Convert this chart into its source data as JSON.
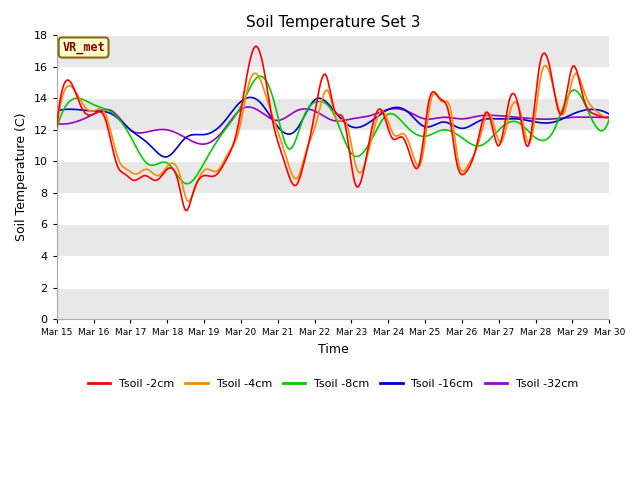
{
  "title": "Soil Temperature Set 3",
  "xlabel": "Time",
  "ylabel": "Soil Temperature (C)",
  "ylim": [
    0,
    18
  ],
  "yticks": [
    0,
    2,
    4,
    6,
    8,
    10,
    12,
    14,
    16,
    18
  ],
  "fig_bg_color": "#ffffff",
  "plot_bg_color": "#ffffff",
  "band_color_light": "#e8e8e8",
  "band_color_white": "#ffffff",
  "annotation_text": "VR_met",
  "annotation_color": "#8B0000",
  "annotation_bg": "#ffffcc",
  "annotation_edge": "#8B6914",
  "series": {
    "Tsoil -2cm": {
      "color": "#ff0000",
      "lw": 1.2
    },
    "Tsoil -4cm": {
      "color": "#ff8800",
      "lw": 1.2
    },
    "Tsoil -8cm": {
      "color": "#00cc00",
      "lw": 1.2
    },
    "Tsoil -16cm": {
      "color": "#0000cc",
      "lw": 1.2
    },
    "Tsoil -32cm": {
      "color": "#9900cc",
      "lw": 1.2
    }
  },
  "xtick_labels": [
    "Mar 15",
    "Mar 16",
    "Mar 17",
    "Mar 18",
    "Mar 19",
    "Mar 20",
    "Mar 21",
    "Mar 22",
    "Mar 23",
    "Mar 24",
    "Mar 25",
    "Mar 26",
    "Mar 27",
    "Mar 28",
    "Mar 29",
    "Mar 30"
  ],
  "tsoil_2cm_x": [
    0.0,
    0.35,
    0.7,
    1.0,
    1.3,
    1.65,
    1.85,
    2.1,
    2.4,
    2.7,
    3.0,
    3.3,
    3.5,
    3.7,
    4.0,
    4.3,
    4.6,
    4.9,
    5.1,
    5.4,
    5.65,
    5.85,
    6.15,
    6.5,
    6.7,
    7.0,
    7.3,
    7.55,
    7.8,
    8.1,
    8.5,
    8.8,
    9.1,
    9.4,
    9.65,
    9.85,
    10.1,
    10.4,
    10.65,
    10.85,
    11.1,
    11.4,
    11.7,
    12.0,
    12.3,
    12.55,
    12.8,
    13.1,
    13.4,
    13.7,
    14.0,
    14.3,
    14.6,
    14.85,
    15.0
  ],
  "tsoil_2cm_y": [
    12.2,
    15.1,
    13.3,
    13.0,
    12.8,
    9.7,
    9.2,
    8.8,
    9.1,
    8.8,
    9.5,
    8.7,
    6.9,
    8.0,
    9.1,
    9.1,
    10.1,
    12.0,
    14.6,
    17.3,
    15.5,
    12.7,
    10.2,
    8.5,
    9.8,
    13.0,
    15.5,
    13.2,
    12.6,
    8.6,
    11.5,
    13.3,
    11.5,
    11.5,
    10.0,
    9.9,
    13.8,
    14.0,
    13.0,
    10.0,
    9.3,
    11.0,
    13.1,
    11.0,
    14.0,
    13.3,
    11.0,
    16.0,
    15.8,
    13.0,
    16.0,
    14.0,
    13.0,
    12.8,
    12.8
  ],
  "tsoil_4cm_x": [
    0.0,
    0.35,
    0.75,
    1.0,
    1.3,
    1.7,
    1.9,
    2.15,
    2.45,
    2.75,
    3.05,
    3.35,
    3.55,
    3.75,
    4.05,
    4.35,
    4.65,
    4.95,
    5.2,
    5.45,
    5.7,
    5.9,
    6.2,
    6.55,
    6.75,
    7.05,
    7.35,
    7.6,
    7.85,
    8.15,
    8.55,
    8.85,
    9.15,
    9.45,
    9.7,
    9.9,
    10.15,
    10.45,
    10.7,
    10.9,
    11.15,
    11.45,
    11.75,
    12.05,
    12.35,
    12.6,
    12.85,
    13.15,
    13.45,
    13.75,
    14.05,
    14.35,
    14.65,
    14.9,
    15.0
  ],
  "tsoil_4cm_y": [
    12.2,
    14.8,
    13.5,
    13.2,
    13.1,
    10.0,
    9.5,
    9.2,
    9.5,
    9.1,
    9.8,
    9.1,
    7.5,
    8.3,
    9.5,
    9.4,
    10.5,
    12.0,
    14.8,
    15.5,
    14.0,
    12.6,
    10.5,
    9.0,
    10.5,
    12.5,
    14.5,
    12.7,
    12.5,
    9.5,
    11.5,
    13.2,
    11.7,
    11.7,
    10.2,
    10.0,
    13.8,
    13.8,
    13.2,
    10.0,
    9.7,
    11.2,
    13.0,
    11.2,
    13.5,
    13.0,
    11.2,
    15.5,
    15.0,
    13.0,
    15.5,
    14.2,
    13.2,
    12.8,
    12.8
  ],
  "tsoil_8cm_x": [
    0.0,
    0.5,
    1.0,
    1.5,
    2.0,
    2.5,
    3.0,
    3.5,
    4.0,
    4.5,
    5.0,
    5.5,
    5.9,
    6.3,
    6.7,
    7.1,
    7.5,
    8.0,
    8.5,
    9.0,
    9.5,
    10.0,
    10.5,
    11.0,
    11.5,
    12.0,
    12.5,
    13.0,
    13.5,
    14.0,
    14.5,
    15.0
  ],
  "tsoil_8cm_y": [
    12.1,
    14.0,
    13.6,
    13.1,
    11.6,
    9.8,
    9.9,
    8.6,
    9.9,
    11.8,
    13.5,
    15.4,
    13.8,
    10.8,
    12.8,
    13.8,
    13.1,
    10.5,
    11.2,
    13.0,
    12.2,
    11.6,
    12.0,
    11.5,
    11.0,
    12.0,
    12.5,
    11.5,
    12.0,
    14.5,
    12.8,
    12.7
  ],
  "tsoil_16cm_x": [
    0.0,
    0.5,
    1.0,
    1.5,
    2.0,
    2.5,
    3.0,
    3.5,
    4.0,
    4.5,
    5.0,
    5.5,
    6.0,
    6.5,
    7.0,
    7.5,
    8.0,
    8.5,
    9.0,
    9.5,
    10.0,
    10.5,
    11.0,
    11.5,
    12.0,
    12.5,
    13.0,
    13.5,
    14.0,
    14.5,
    15.0
  ],
  "tsoil_16cm_y": [
    13.2,
    13.3,
    13.2,
    13.0,
    12.0,
    11.1,
    10.3,
    11.5,
    11.7,
    12.4,
    13.8,
    13.8,
    12.2,
    12.0,
    13.9,
    13.3,
    12.2,
    12.5,
    13.3,
    13.2,
    12.2,
    12.5,
    12.1,
    12.6,
    12.7,
    12.7,
    12.5,
    12.5,
    13.0,
    13.3,
    13.0
  ],
  "tsoil_32cm_x": [
    0.0,
    0.5,
    1.0,
    1.5,
    2.0,
    2.5,
    3.0,
    3.5,
    4.0,
    4.5,
    5.0,
    5.5,
    6.0,
    6.5,
    7.0,
    7.5,
    8.0,
    8.5,
    9.0,
    9.5,
    10.0,
    10.5,
    11.0,
    11.5,
    12.0,
    12.5,
    13.0,
    13.5,
    14.0,
    14.5,
    15.0
  ],
  "tsoil_32cm_y": [
    12.4,
    12.5,
    13.0,
    13.2,
    12.0,
    11.9,
    12.0,
    11.5,
    11.1,
    11.9,
    13.3,
    13.2,
    12.6,
    13.2,
    13.2,
    12.6,
    12.7,
    12.9,
    13.3,
    13.2,
    12.7,
    12.8,
    12.7,
    12.9,
    12.9,
    12.8,
    12.7,
    12.7,
    12.8,
    12.8,
    12.8
  ]
}
